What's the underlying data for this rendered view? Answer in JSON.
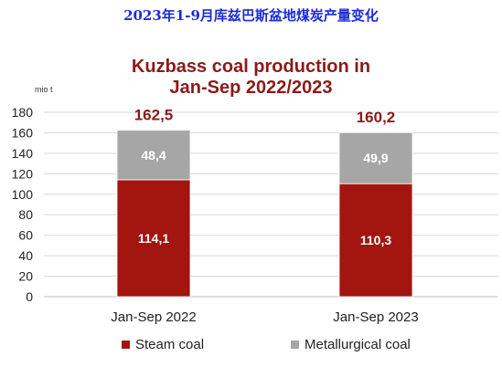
{
  "header": {
    "title_cn": "2023年1-9月库兹巴斯盆地煤炭产量变化"
  },
  "chart_data": {
    "type": "bar",
    "stacked": true,
    "title_line1": "Kuzbass coal production  in",
    "title_line2": "Jan-Sep 2022/2023",
    "unit_label": "mio t",
    "categories": [
      "Jan-Sep 2022",
      "Jan-Sep 2023"
    ],
    "series": [
      {
        "name": "Steam coal",
        "values": [
          114.1,
          110.3
        ],
        "labels": [
          "114,1",
          "110,3"
        ],
        "color": "#a3150f"
      },
      {
        "name": "Metallurgical coal",
        "values": [
          48.4,
          49.9
        ],
        "labels": [
          "48,4",
          "49,9"
        ],
        "color": "#a6a6a6"
      }
    ],
    "totals": [
      162.5,
      160.2
    ],
    "total_labels": [
      "162,5",
      "160,2"
    ],
    "total_label_color": "#8b1a1a",
    "ylim": [
      0,
      180
    ],
    "yticks": [
      0,
      20,
      40,
      60,
      80,
      100,
      120,
      140,
      160,
      180
    ],
    "grid": true,
    "legend_position": "bottom"
  }
}
